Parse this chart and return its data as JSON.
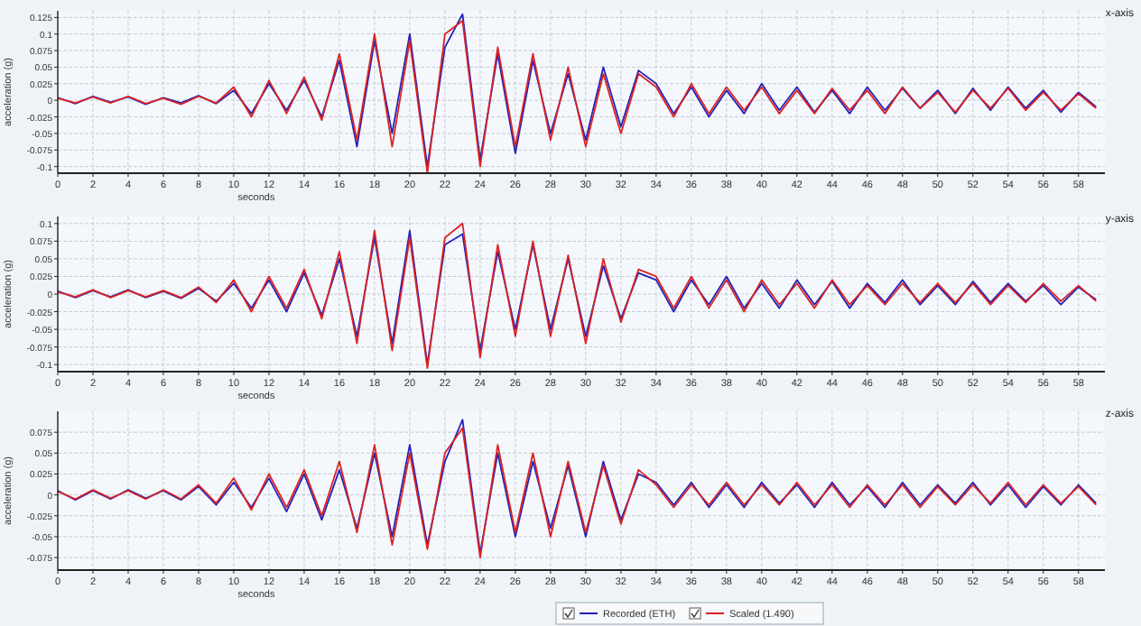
{
  "chart_data": [
    {
      "type": "line",
      "title": "x-axis",
      "xlabel": "seconds",
      "ylabel": "acceleration (g)",
      "grid": true,
      "x": [
        0,
        1,
        2,
        3,
        4,
        5,
        6,
        7,
        8,
        9,
        10,
        11,
        12,
        13,
        14,
        15,
        16,
        17,
        18,
        19,
        20,
        21,
        22,
        23,
        24,
        25,
        26,
        27,
        28,
        29,
        30,
        31,
        32,
        33,
        34,
        35,
        36,
        37,
        38,
        39,
        40,
        41,
        42,
        43,
        44,
        45,
        46,
        47,
        48,
        49,
        50,
        51,
        52,
        53,
        54,
        55,
        56,
        57,
        58,
        59
      ],
      "xlim": [
        0,
        59.5
      ],
      "xticks": [
        0,
        2,
        4,
        6,
        8,
        10,
        12,
        14,
        16,
        18,
        20,
        22,
        24,
        26,
        28,
        30,
        32,
        34,
        36,
        38,
        40,
        42,
        44,
        46,
        48,
        50,
        52,
        54,
        56,
        58
      ],
      "ylim": [
        -0.11,
        0.135
      ],
      "yticks": [
        -0.1,
        -0.075,
        -0.05,
        -0.025,
        0,
        0.025,
        0.05,
        0.075,
        0.1,
        0.125
      ],
      "series": [
        {
          "color": "#2222bb",
          "values": [
            0.004,
            -0.005,
            0.006,
            -0.003,
            0.005,
            -0.006,
            0.004,
            -0.004,
            0.007,
            -0.005,
            0.015,
            -0.02,
            0.025,
            -0.015,
            0.03,
            -0.025,
            0.06,
            -0.07,
            0.09,
            -0.05,
            0.1,
            -0.1,
            0.08,
            0.13,
            -0.09,
            0.07,
            -0.08,
            0.06,
            -0.05,
            0.04,
            -0.06,
            0.05,
            -0.04,
            0.045,
            0.025,
            -0.02,
            0.02,
            -0.025,
            0.015,
            -0.02,
            0.025,
            -0.015,
            0.02,
            -0.018,
            0.015,
            -0.02,
            0.02,
            -0.015,
            0.018,
            -0.012,
            0.015,
            -0.02,
            0.018,
            -0.015,
            0.02,
            -0.012,
            0.015,
            -0.018,
            0.012,
            -0.01
          ]
        },
        {
          "color": "#dd2222",
          "values": [
            0.003,
            -0.004,
            0.005,
            -0.004,
            0.006,
            -0.005,
            0.003,
            -0.006,
            0.006,
            -0.004,
            0.02,
            -0.025,
            0.03,
            -0.02,
            0.035,
            -0.03,
            0.07,
            -0.06,
            0.1,
            -0.07,
            0.09,
            -0.11,
            0.1,
            0.12,
            -0.1,
            0.08,
            -0.07,
            0.07,
            -0.06,
            0.05,
            -0.07,
            0.04,
            -0.05,
            0.04,
            0.02,
            -0.025,
            0.025,
            -0.02,
            0.02,
            -0.015,
            0.02,
            -0.02,
            0.015,
            -0.02,
            0.018,
            -0.015,
            0.015,
            -0.02,
            0.02,
            -0.012,
            0.012,
            -0.018,
            0.015,
            -0.012,
            0.018,
            -0.015,
            0.012,
            -0.015,
            0.01,
            -0.012
          ]
        }
      ]
    },
    {
      "type": "line",
      "title": "y-axis",
      "xlabel": "seconds",
      "ylabel": "acceleration (g)",
      "grid": true,
      "x": [
        0,
        1,
        2,
        3,
        4,
        5,
        6,
        7,
        8,
        9,
        10,
        11,
        12,
        13,
        14,
        15,
        16,
        17,
        18,
        19,
        20,
        21,
        22,
        23,
        24,
        25,
        26,
        27,
        28,
        29,
        30,
        31,
        32,
        33,
        34,
        35,
        36,
        37,
        38,
        39,
        40,
        41,
        42,
        43,
        44,
        45,
        46,
        47,
        48,
        49,
        50,
        51,
        52,
        53,
        54,
        55,
        56,
        57,
        58,
        59
      ],
      "xlim": [
        0,
        59.5
      ],
      "xticks": [
        0,
        2,
        4,
        6,
        8,
        10,
        12,
        14,
        16,
        18,
        20,
        22,
        24,
        26,
        28,
        30,
        32,
        34,
        36,
        38,
        40,
        42,
        44,
        46,
        48,
        50,
        52,
        54,
        56,
        58
      ],
      "ylim": [
        -0.11,
        0.11
      ],
      "yticks": [
        -0.1,
        -0.075,
        -0.05,
        -0.025,
        0,
        0.025,
        0.05,
        0.075,
        0.1
      ],
      "series": [
        {
          "color": "#2222bb",
          "values": [
            0.004,
            -0.005,
            0.005,
            -0.004,
            0.006,
            -0.005,
            0.004,
            -0.006,
            0.008,
            -0.01,
            0.015,
            -0.02,
            0.02,
            -0.025,
            0.03,
            -0.03,
            0.05,
            -0.06,
            0.08,
            -0.07,
            0.09,
            -0.1,
            0.07,
            0.085,
            -0.08,
            0.06,
            -0.05,
            0.07,
            -0.05,
            0.05,
            -0.06,
            0.04,
            -0.035,
            0.03,
            0.02,
            -0.025,
            0.02,
            -0.015,
            0.025,
            -0.02,
            0.015,
            -0.02,
            0.02,
            -0.015,
            0.018,
            -0.02,
            0.015,
            -0.012,
            0.02,
            -0.015,
            0.012,
            -0.015,
            0.018,
            -0.012,
            0.015,
            -0.01,
            0.012,
            -0.015,
            0.01,
            -0.008
          ]
        },
        {
          "color": "#dd2222",
          "values": [
            0.003,
            -0.004,
            0.006,
            -0.005,
            0.005,
            -0.004,
            0.005,
            -0.005,
            0.01,
            -0.012,
            0.02,
            -0.025,
            0.025,
            -0.02,
            0.035,
            -0.035,
            0.06,
            -0.07,
            0.09,
            -0.08,
            0.08,
            -0.105,
            0.08,
            0.1,
            -0.09,
            0.07,
            -0.06,
            0.075,
            -0.06,
            0.055,
            -0.07,
            0.05,
            -0.04,
            0.035,
            0.025,
            -0.02,
            0.025,
            -0.02,
            0.02,
            -0.025,
            0.02,
            -0.015,
            0.015,
            -0.02,
            0.02,
            -0.015,
            0.012,
            -0.015,
            0.015,
            -0.012,
            0.015,
            -0.012,
            0.015,
            -0.015,
            0.012,
            -0.012,
            0.015,
            -0.01,
            0.012,
            -0.01
          ]
        }
      ]
    },
    {
      "type": "line",
      "title": "z-axis",
      "xlabel": "seconds",
      "ylabel": "acceleration (g)",
      "grid": true,
      "legend": "bottom",
      "x": [
        0,
        1,
        2,
        3,
        4,
        5,
        6,
        7,
        8,
        9,
        10,
        11,
        12,
        13,
        14,
        15,
        16,
        17,
        18,
        19,
        20,
        21,
        22,
        23,
        24,
        25,
        26,
        27,
        28,
        29,
        30,
        31,
        32,
        33,
        34,
        35,
        36,
        37,
        38,
        39,
        40,
        41,
        42,
        43,
        44,
        45,
        46,
        47,
        48,
        49,
        50,
        51,
        52,
        53,
        54,
        55,
        56,
        57,
        58,
        59
      ],
      "xlim": [
        0,
        59.5
      ],
      "xticks": [
        0,
        2,
        4,
        6,
        8,
        10,
        12,
        14,
        16,
        18,
        20,
        22,
        24,
        26,
        28,
        30,
        32,
        34,
        36,
        38,
        40,
        42,
        44,
        46,
        48,
        50,
        52,
        54,
        56,
        58
      ],
      "ylim": [
        -0.09,
        0.1
      ],
      "yticks": [
        -0.075,
        -0.05,
        -0.025,
        0,
        0.025,
        0.05,
        0.075
      ],
      "series": [
        {
          "name": "Recorded (ETH)",
          "color": "#2222bb",
          "values": [
            0.005,
            -0.006,
            0.005,
            -0.005,
            0.006,
            -0.004,
            0.005,
            -0.006,
            0.01,
            -0.012,
            0.015,
            -0.015,
            0.02,
            -0.02,
            0.025,
            -0.03,
            0.03,
            -0.04,
            0.05,
            -0.05,
            0.06,
            -0.06,
            0.04,
            0.09,
            -0.07,
            0.05,
            -0.05,
            0.04,
            -0.04,
            0.035,
            -0.05,
            0.04,
            -0.03,
            0.025,
            0.015,
            -0.012,
            0.015,
            -0.015,
            0.012,
            -0.015,
            0.015,
            -0.01,
            0.012,
            -0.015,
            0.015,
            -0.012,
            0.01,
            -0.015,
            0.015,
            -0.012,
            0.012,
            -0.01,
            0.015,
            -0.012,
            0.012,
            -0.015,
            0.01,
            -0.012,
            0.012,
            -0.01
          ]
        },
        {
          "name": "Scaled (1.490)",
          "color": "#dd2222",
          "values": [
            0.004,
            -0.005,
            0.006,
            -0.004,
            0.005,
            -0.005,
            0.006,
            -0.005,
            0.012,
            -0.01,
            0.02,
            -0.018,
            0.025,
            -0.015,
            0.03,
            -0.025,
            0.04,
            -0.045,
            0.06,
            -0.06,
            0.05,
            -0.065,
            0.05,
            0.08,
            -0.075,
            0.06,
            -0.045,
            0.05,
            -0.05,
            0.04,
            -0.045,
            0.035,
            -0.035,
            0.03,
            0.012,
            -0.015,
            0.012,
            -0.012,
            0.015,
            -0.012,
            0.012,
            -0.012,
            0.015,
            -0.012,
            0.012,
            -0.015,
            0.012,
            -0.012,
            0.012,
            -0.015,
            0.01,
            -0.012,
            0.012,
            -0.01,
            0.015,
            -0.012,
            0.012,
            -0.01,
            0.01,
            -0.012
          ]
        }
      ]
    }
  ]
}
